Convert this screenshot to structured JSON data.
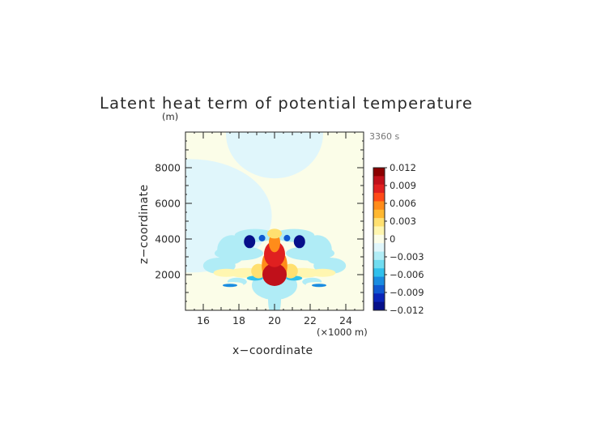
{
  "chart_data": {
    "type": "heatmap",
    "title": "Latent heat term of potential temperature",
    "time_label": "3360 s",
    "xlabel": "x−coordinate",
    "ylabel": "z−coordinate",
    "x_unit_label": "(×1000 m)",
    "y_unit_label": "(m)",
    "xlim": [
      15,
      25
    ],
    "ylim": [
      0,
      10000
    ],
    "x_ticks": [
      16,
      18,
      20,
      22,
      24
    ],
    "y_ticks": [
      2000,
      4000,
      6000,
      8000
    ],
    "x_tick_labels": [
      "16",
      "18",
      "20",
      "22",
      "24"
    ],
    "y_tick_labels": [
      "2000",
      "4000",
      "6000",
      "8000"
    ],
    "colorbar": {
      "ticks": [
        "0.012",
        "0.009",
        "0.006",
        "0.003",
        "0",
        "−0.003",
        "−0.006",
        "−0.009",
        "−0.012"
      ],
      "levels": [
        0.012,
        0.0105,
        0.009,
        0.0075,
        0.006,
        0.0045,
        0.003,
        0.0015,
        0.0005,
        -0.0005,
        -0.0015,
        -0.003,
        -0.0045,
        -0.006,
        -0.0075,
        -0.009,
        -0.0105
      ],
      "colors": [
        "#8b0000",
        "#c0101a",
        "#e02020",
        "#ff4a18",
        "#ff8c1a",
        "#ffb830",
        "#ffe070",
        "#fff6b0",
        "#fbfde8",
        "#e0f6fb",
        "#b0ecf6",
        "#70dcf0",
        "#30c0ec",
        "#1a8ce0",
        "#1058d0",
        "#0a24b8",
        "#06108a"
      ]
    },
    "features": [
      {
        "x": 15.3,
        "z": 5300,
        "value": 0.0004
      },
      {
        "x": 20.0,
        "z": 9900,
        "value": 0.0004
      },
      {
        "x": 17.6,
        "z": 3400,
        "value": -0.0011
      },
      {
        "x": 22.4,
        "z": 3400,
        "value": -0.0011
      },
      {
        "x": 18.9,
        "z": 4200,
        "value": -0.0009
      },
      {
        "x": 21.1,
        "z": 4200,
        "value": -0.0009
      },
      {
        "x": 18.0,
        "z": 3200,
        "value": -0.0009
      },
      {
        "x": 22.0,
        "z": 3200,
        "value": -0.0009
      },
      {
        "x": 16.9,
        "z": 2500,
        "value": -0.0009
      },
      {
        "x": 23.1,
        "z": 2500,
        "value": -0.0009
      },
      {
        "x": 20.0,
        "z": 600,
        "value": -0.0014
      },
      {
        "x": 20.0,
        "z": 1400,
        "value": -0.0008
      },
      {
        "x": 17.9,
        "z": 1600,
        "value": -0.0008
      },
      {
        "x": 22.1,
        "z": 1600,
        "value": -0.0008
      },
      {
        "x": 18.4,
        "z": 2100,
        "value": 0.0018
      },
      {
        "x": 21.6,
        "z": 2100,
        "value": 0.0018
      },
      {
        "x": 17.3,
        "z": 2100,
        "value": 0.0016
      },
      {
        "x": 22.7,
        "z": 2100,
        "value": 0.0016
      },
      {
        "x": 17.7,
        "z": 1450,
        "value": 0.0013
      },
      {
        "x": 22.3,
        "z": 1450,
        "value": 0.0013
      },
      {
        "x": 17.5,
        "z": 1400,
        "value": -0.0046
      },
      {
        "x": 22.5,
        "z": 1400,
        "value": -0.0046
      },
      {
        "x": 18.9,
        "z": 1800,
        "value": -0.0036
      },
      {
        "x": 21.1,
        "z": 1800,
        "value": -0.0036
      },
      {
        "x": 19.1,
        "z": 2200,
        "value": 0.0042
      },
      {
        "x": 20.9,
        "z": 2200,
        "value": 0.0042
      },
      {
        "x": 19.6,
        "z": 2500,
        "value": 0.0071
      },
      {
        "x": 20.4,
        "z": 2500,
        "value": 0.0071
      },
      {
        "x": 20.0,
        "z": 2000,
        "value": 0.0115
      },
      {
        "x": 20.0,
        "z": 3150,
        "value": 0.0095
      },
      {
        "x": 20.0,
        "z": 3800,
        "value": 0.0068
      },
      {
        "x": 20.0,
        "z": 4300,
        "value": 0.0035
      },
      {
        "x": 18.6,
        "z": 3850,
        "value": -0.011
      },
      {
        "x": 21.4,
        "z": 3850,
        "value": -0.011
      },
      {
        "x": 19.3,
        "z": 4050,
        "value": -0.0065
      },
      {
        "x": 20.7,
        "z": 4050,
        "value": -0.0065
      }
    ]
  }
}
